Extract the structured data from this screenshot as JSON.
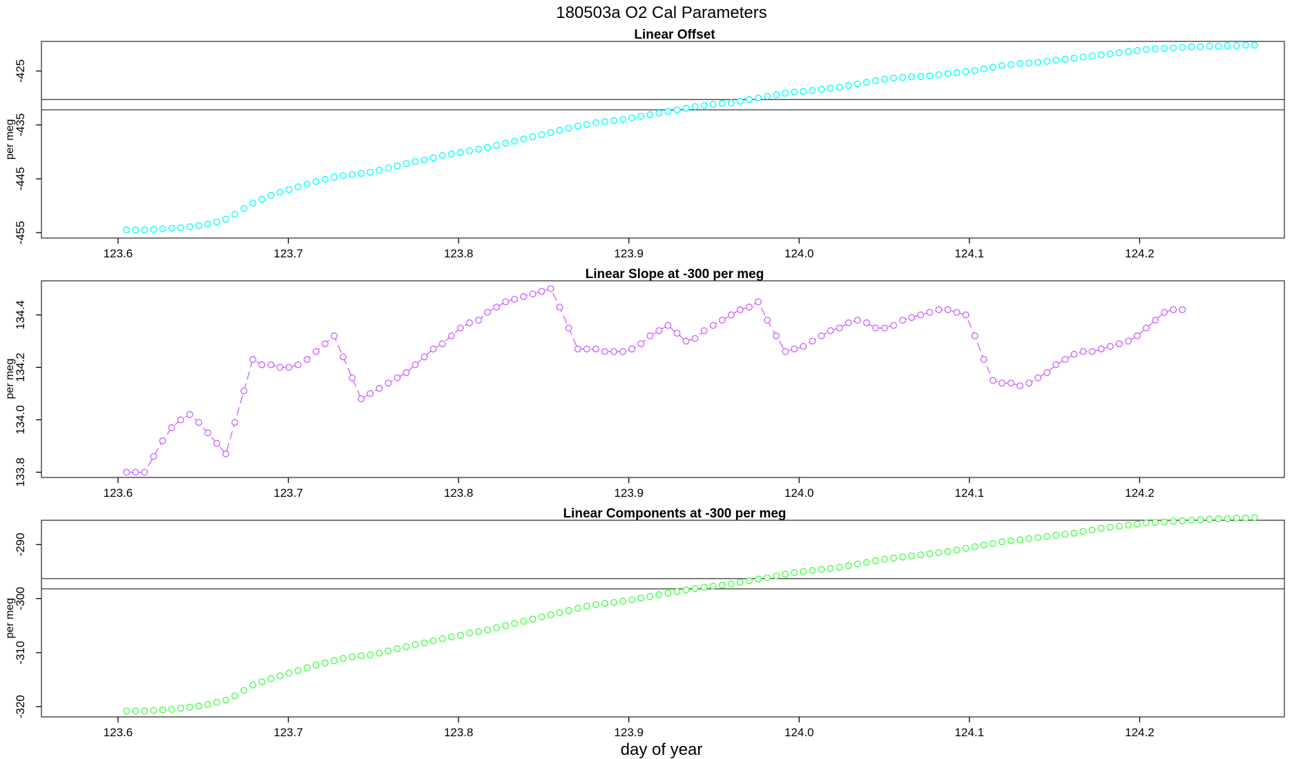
{
  "figure": {
    "title": "180503a   O2 Cal Parameters",
    "xlabel": "day of year"
  },
  "chart_data": [
    {
      "type": "scatter",
      "title": "Linear Offset",
      "ylabel": "per meg",
      "color": "#00ffff",
      "connect_line": false,
      "xlim": [
        123.555,
        124.285
      ],
      "ylim": [
        -456,
        -419.5
      ],
      "xticks": [
        123.6,
        123.7,
        123.8,
        123.9,
        124.0,
        124.1,
        124.2
      ],
      "xtick_labels": [
        "123.6",
        "123.7",
        "123.8",
        "123.9",
        "124.0",
        "124.1",
        "124.2"
      ],
      "yticks": [
        -425,
        -435,
        -445,
        -455
      ],
      "ytick_labels": [
        "-425",
        "-435",
        "-445",
        "-455"
      ],
      "hlines": [
        -430.3,
        -432.2
      ],
      "x_start": 123.605,
      "x_step": 0.0053,
      "values": [
        -454.5,
        -454.5,
        -454.5,
        -454.4,
        -454.3,
        -454.2,
        -454.1,
        -453.9,
        -453.7,
        -453.4,
        -453.0,
        -452.5,
        -451.6,
        -450.5,
        -449.5,
        -448.8,
        -448.1,
        -447.5,
        -447.0,
        -446.5,
        -446.0,
        -445.5,
        -445.1,
        -444.7,
        -444.4,
        -444.2,
        -444.0,
        -443.8,
        -443.4,
        -443.0,
        -442.6,
        -442.2,
        -441.8,
        -441.5,
        -441.1,
        -440.7,
        -440.4,
        -440.1,
        -439.8,
        -439.5,
        -439.2,
        -438.8,
        -438.4,
        -438.0,
        -437.6,
        -437.2,
        -436.8,
        -436.4,
        -436.0,
        -435.6,
        -435.2,
        -434.9,
        -434.6,
        -434.4,
        -434.2,
        -434.0,
        -433.7,
        -433.4,
        -433.1,
        -432.8,
        -432.5,
        -432.2,
        -431.9,
        -431.6,
        -431.4,
        -431.2,
        -431.0,
        -430.9,
        -430.6,
        -430.3,
        -430.0,
        -429.7,
        -429.4,
        -429.1,
        -428.9,
        -428.8,
        -428.6,
        -428.4,
        -428.2,
        -428.0,
        -427.7,
        -427.4,
        -427.1,
        -426.8,
        -426.5,
        -426.3,
        -426.2,
        -426.1,
        -426.0,
        -425.9,
        -425.7,
        -425.5,
        -425.3,
        -425.1,
        -424.9,
        -424.6,
        -424.3,
        -424.0,
        -423.8,
        -423.6,
        -423.5,
        -423.4,
        -423.2,
        -423.0,
        -422.8,
        -422.6,
        -422.4,
        -422.2,
        -422.0,
        -421.8,
        -421.6,
        -421.4,
        -421.2,
        -421.0,
        -420.9,
        -420.8,
        -420.7,
        -420.6,
        -420.5,
        -420.5,
        -420.4,
        -420.4,
        -420.3,
        -420.3,
        -420.2,
        -420.2
      ]
    },
    {
      "type": "line",
      "title": "Linear Slope at -300 per meg",
      "ylabel": "per meg",
      "color": "#cc66ff",
      "connect_line": true,
      "xlim": [
        123.555,
        124.285
      ],
      "ylim": [
        133.78,
        134.53
      ],
      "xticks": [
        123.6,
        123.7,
        123.8,
        123.9,
        124.0,
        124.1,
        124.2
      ],
      "xtick_labels": [
        "123.6",
        "123.7",
        "123.8",
        "123.9",
        "124.0",
        "124.1",
        "124.2"
      ],
      "yticks": [
        133.8,
        134.0,
        134.2,
        134.4
      ],
      "ytick_labels": [
        "133.8",
        "134.0",
        "134.2",
        "134.4"
      ],
      "hlines": [],
      "x_start": 123.605,
      "x_step": 0.0053,
      "values": [
        133.8,
        133.8,
        133.8,
        133.86,
        133.92,
        133.97,
        134.0,
        134.02,
        133.99,
        133.95,
        133.91,
        133.87,
        133.99,
        134.11,
        134.23,
        134.21,
        134.21,
        134.2,
        134.2,
        134.21,
        134.23,
        134.26,
        134.29,
        134.32,
        134.24,
        134.16,
        134.08,
        134.1,
        134.12,
        134.14,
        134.16,
        134.18,
        134.21,
        134.24,
        134.27,
        134.29,
        134.32,
        134.35,
        134.37,
        134.38,
        134.41,
        134.43,
        134.45,
        134.46,
        134.47,
        134.48,
        134.49,
        134.5,
        134.43,
        134.35,
        134.27,
        134.27,
        134.27,
        134.26,
        134.26,
        134.26,
        134.27,
        134.29,
        134.32,
        134.34,
        134.36,
        134.33,
        134.3,
        134.31,
        134.34,
        134.36,
        134.38,
        134.4,
        134.42,
        134.43,
        134.45,
        134.38,
        134.32,
        134.26,
        134.27,
        134.28,
        134.3,
        134.32,
        134.34,
        134.35,
        134.37,
        134.38,
        134.37,
        134.35,
        134.35,
        134.36,
        134.38,
        134.39,
        134.4,
        134.41,
        134.42,
        134.42,
        134.41,
        134.4,
        134.32,
        134.23,
        134.15,
        134.14,
        134.14,
        134.13,
        134.14,
        134.16,
        134.18,
        134.21,
        134.23,
        134.25,
        134.26,
        134.26,
        134.27,
        134.28,
        134.29,
        134.3,
        134.32,
        134.35,
        134.38,
        134.41,
        134.42,
        134.42
      ]
    },
    {
      "type": "scatter",
      "title": "Linear Components at -300 per meg",
      "ylabel": "per meg",
      "color": "#44ff44",
      "connect_line": false,
      "xlim": [
        123.555,
        124.285
      ],
      "ylim": [
        -321.9,
        -285.5
      ],
      "xticks": [
        123.6,
        123.7,
        123.8,
        123.9,
        124.0,
        124.1,
        124.2
      ],
      "xtick_labels": [
        "123.6",
        "123.7",
        "123.8",
        "123.9",
        "124.0",
        "124.1",
        "124.2"
      ],
      "yticks": [
        -290,
        -300,
        -310,
        -320
      ],
      "ytick_labels": [
        "-290",
        "-300",
        "-310",
        "-320"
      ],
      "hlines": [
        -296.3,
        -298.2
      ],
      "x_start": 123.605,
      "x_step": 0.0053,
      "values": [
        -320.8,
        -320.8,
        -320.8,
        -320.7,
        -320.6,
        -320.5,
        -320.3,
        -320.1,
        -319.9,
        -319.6,
        -319.2,
        -318.8,
        -318.0,
        -317.0,
        -316.0,
        -315.4,
        -314.8,
        -314.3,
        -313.8,
        -313.3,
        -312.8,
        -312.3,
        -311.9,
        -311.5,
        -311.1,
        -310.8,
        -310.6,
        -310.4,
        -310.1,
        -309.7,
        -309.3,
        -308.9,
        -308.5,
        -308.2,
        -307.8,
        -307.4,
        -307.1,
        -306.8,
        -306.4,
        -306.1,
        -305.8,
        -305.4,
        -305.0,
        -304.6,
        -304.2,
        -303.8,
        -303.4,
        -303.0,
        -302.6,
        -302.2,
        -301.8,
        -301.4,
        -301.1,
        -300.9,
        -300.7,
        -300.5,
        -300.2,
        -299.9,
        -299.6,
        -299.3,
        -299.0,
        -298.7,
        -298.4,
        -298.1,
        -297.9,
        -297.7,
        -297.5,
        -297.3,
        -297.0,
        -296.7,
        -296.4,
        -296.1,
        -295.8,
        -295.5,
        -295.2,
        -295.0,
        -294.8,
        -294.6,
        -294.4,
        -294.2,
        -293.9,
        -293.6,
        -293.3,
        -293.0,
        -292.7,
        -292.5,
        -292.3,
        -292.1,
        -291.9,
        -291.7,
        -291.5,
        -291.3,
        -291.0,
        -290.7,
        -290.4,
        -290.1,
        -289.8,
        -289.5,
        -289.3,
        -289.1,
        -288.9,
        -288.7,
        -288.5,
        -288.3,
        -288.1,
        -287.9,
        -287.6,
        -287.3,
        -287.0,
        -286.8,
        -286.6,
        -286.4,
        -286.2,
        -286.0,
        -285.9,
        -285.8,
        -285.7,
        -285.6,
        -285.5,
        -285.4,
        -285.3,
        -285.2,
        -285.2,
        -285.1,
        -285.1,
        -285.0
      ]
    }
  ]
}
